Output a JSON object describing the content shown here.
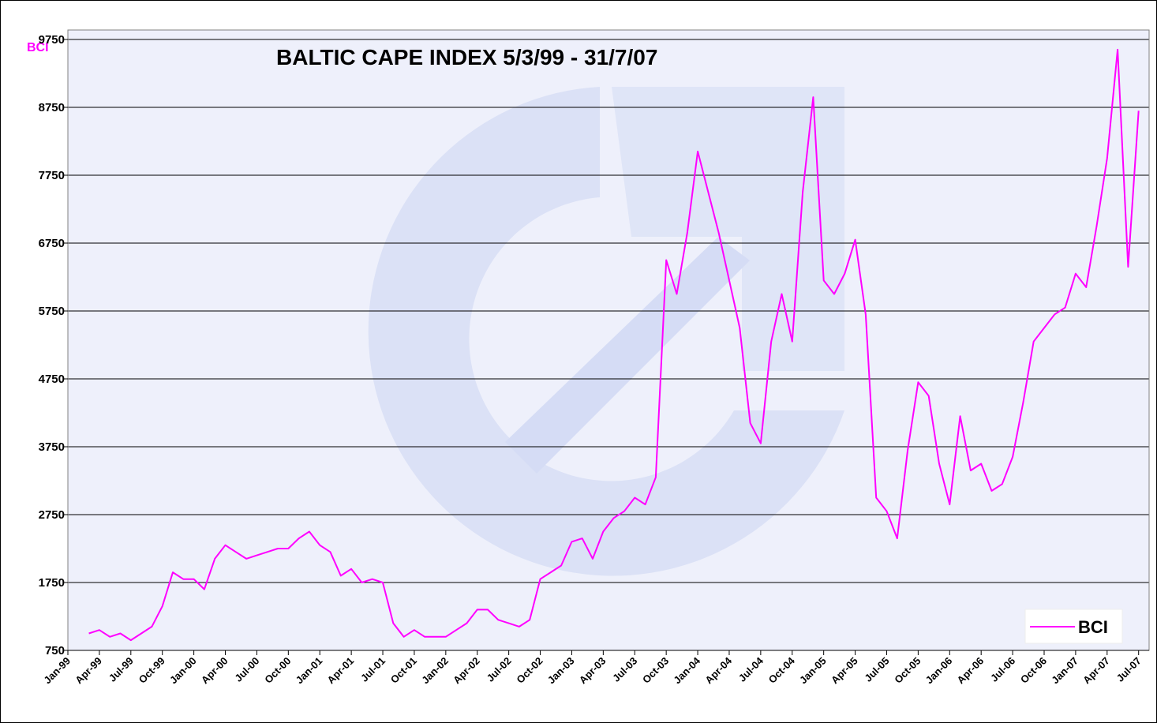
{
  "chart_data": {
    "type": "line",
    "title": "BALTIC CAPE INDEX 5/3/99 - 31/7/07",
    "ylabel": "BCI",
    "x": [
      "1999-03",
      "1999-04",
      "1999-05",
      "1999-06",
      "1999-07",
      "1999-08",
      "1999-09",
      "1999-10",
      "1999-11",
      "1999-12",
      "2000-01",
      "2000-02",
      "2000-03",
      "2000-04",
      "2000-05",
      "2000-06",
      "2000-07",
      "2000-08",
      "2000-09",
      "2000-10",
      "2000-11",
      "2000-12",
      "2001-01",
      "2001-02",
      "2001-03",
      "2001-04",
      "2001-05",
      "2001-06",
      "2001-07",
      "2001-08",
      "2001-09",
      "2001-10",
      "2001-11",
      "2001-12",
      "2002-01",
      "2002-02",
      "2002-03",
      "2002-04",
      "2002-05",
      "2002-06",
      "2002-07",
      "2002-08",
      "2002-09",
      "2002-10",
      "2002-11",
      "2002-12",
      "2003-01",
      "2003-02",
      "2003-03",
      "2003-04",
      "2003-05",
      "2003-06",
      "2003-07",
      "2003-08",
      "2003-09",
      "2003-10",
      "2003-11",
      "2003-12",
      "2004-01",
      "2004-02",
      "2004-03",
      "2004-04",
      "2004-05",
      "2004-06",
      "2004-07",
      "2004-08",
      "2004-09",
      "2004-10",
      "2004-11",
      "2004-12",
      "2005-01",
      "2005-02",
      "2005-03",
      "2005-04",
      "2005-05",
      "2005-06",
      "2005-07",
      "2005-08",
      "2005-09",
      "2005-10",
      "2005-11",
      "2005-12",
      "2006-01",
      "2006-02",
      "2006-03",
      "2006-04",
      "2006-05",
      "2006-06",
      "2006-07",
      "2006-08",
      "2006-09",
      "2006-10",
      "2006-11",
      "2006-12",
      "2007-01",
      "2007-02",
      "2007-03",
      "2007-04",
      "2007-05",
      "2007-06",
      "2007-07"
    ],
    "series": [
      {
        "name": "BCI",
        "color": "#ff00ff",
        "values": [
          1000,
          1050,
          950,
          1000,
          900,
          1000,
          1100,
          1400,
          1900,
          1800,
          1800,
          1650,
          2100,
          2300,
          2200,
          2100,
          2150,
          2200,
          2250,
          2250,
          2400,
          2500,
          2300,
          2200,
          1850,
          1950,
          1750,
          1800,
          1750,
          1150,
          950,
          1050,
          950,
          950,
          950,
          1050,
          1150,
          1350,
          1350,
          1200,
          1150,
          1100,
          1200,
          1800,
          1900,
          2000,
          2350,
          2400,
          2100,
          2500,
          2700,
          2800,
          3000,
          2900,
          3300,
          6500,
          6000,
          6900,
          8100,
          7500,
          6900,
          6200,
          5500,
          4100,
          3800,
          5300,
          6000,
          5300,
          7500,
          8900,
          6200,
          6000,
          6300,
          6800,
          5700,
          3000,
          2800,
          2400,
          3700,
          4700,
          4500,
          3500,
          2900,
          4200,
          3400,
          3500,
          3100,
          3200,
          3600,
          4400,
          5300,
          5500,
          5700,
          5800,
          6300,
          6100,
          7000,
          8000,
          9600,
          6400,
          8700
        ]
      }
    ],
    "ylim": [
      750,
      9750
    ],
    "yticks": [
      750,
      1750,
      2750,
      3750,
      4750,
      5750,
      6750,
      7750,
      8750,
      9750
    ],
    "xlim": [
      {
        "value": "1999-01",
        "label": "Jan-99"
      },
      "2007-08"
    ],
    "xticks": [
      {
        "value": "1999-01",
        "label": "Jan-99"
      },
      {
        "value": "1999-04",
        "label": "Apr-99"
      },
      {
        "value": "1999-07",
        "label": "Jul-99"
      },
      {
        "value": "1999-10",
        "label": "Oct-99"
      },
      {
        "value": "2000-01",
        "label": "Jan-00"
      },
      {
        "value": "2000-04",
        "label": "Apr-00"
      },
      {
        "value": "2000-07",
        "label": "Jul-00"
      },
      {
        "value": "2000-10",
        "label": "Oct-00"
      },
      {
        "value": "2001-01",
        "label": "Jan-01"
      },
      {
        "value": "2001-04",
        "label": "Apr-01"
      },
      {
        "value": "2001-07",
        "label": "Jul-01"
      },
      {
        "value": "2001-10",
        "label": "Oct-01"
      },
      {
        "value": "2002-01",
        "label": "Jan-02"
      },
      {
        "value": "2002-04",
        "label": "Apr-02"
      },
      {
        "value": "2002-07",
        "label": "Jul-02"
      },
      {
        "value": "2002-10",
        "label": "Oct-02"
      },
      {
        "value": "2003-01",
        "label": "Jan-03"
      },
      {
        "value": "2003-04",
        "label": "Apr-03"
      },
      {
        "value": "2003-07",
        "label": "Jul-03"
      },
      {
        "value": "2003-10",
        "label": "Oct-03"
      },
      {
        "value": "2004-01",
        "label": "Jan-04"
      },
      {
        "value": "2004-04",
        "label": "Apr-04"
      },
      {
        "value": "2004-07",
        "label": "Jul-04"
      },
      {
        "value": "2004-10",
        "label": "Oct-04"
      },
      {
        "value": "2005-01",
        "label": "Jan-05"
      },
      {
        "value": "2005-04",
        "label": "Apr-05"
      },
      {
        "value": "2005-07",
        "label": "Jul-05"
      },
      {
        "value": "2005-10",
        "label": "Oct-05"
      },
      {
        "value": "2006-01",
        "label": "Jan-06"
      },
      {
        "value": "2006-04",
        "label": "Apr-06"
      },
      {
        "value": "2006-07",
        "label": "Jul-06"
      },
      {
        "value": "2006-10",
        "label": "Oct-06"
      },
      {
        "value": "2007-01",
        "label": "Jan-07"
      },
      {
        "value": "2007-04",
        "label": "Apr-07"
      },
      {
        "value": "2007-07",
        "label": "Jul-07"
      }
    ],
    "grid": true,
    "legend": "lower right"
  }
}
